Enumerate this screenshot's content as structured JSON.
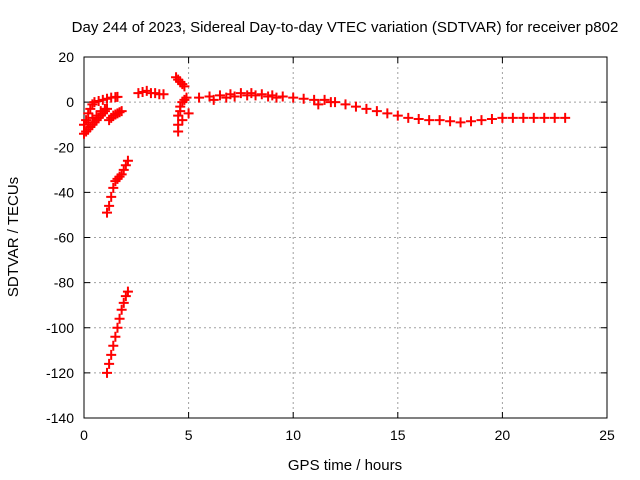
{
  "chart_data": {
    "type": "scatter",
    "title": "Day 244 of 2023, Sidereal Day-to-day VTEC variation (SDTVAR) for receiver p802",
    "xlabel": "GPS time / hours",
    "ylabel": "SDTVAR / TECUs",
    "xlim": [
      0,
      25
    ],
    "ylim": [
      -140,
      20
    ],
    "xticks": [
      0,
      5,
      10,
      15,
      20,
      25
    ],
    "yticks": [
      -140,
      -120,
      -100,
      -80,
      -60,
      -40,
      -20,
      0,
      20
    ],
    "grid": true,
    "legend": "none",
    "marker": "plus",
    "colors": {
      "series": "#ff0000",
      "grid": "#a0a0a0",
      "axis": "#000000"
    },
    "series": [
      {
        "name": "SDTVAR",
        "points": [
          [
            0.0,
            -10
          ],
          [
            0.1,
            -8
          ],
          [
            0.2,
            -5
          ],
          [
            0.3,
            -3
          ],
          [
            0.4,
            -1
          ],
          [
            0.5,
            0
          ],
          [
            0.7,
            0.5
          ],
          [
            0.9,
            1
          ],
          [
            1.1,
            1.5
          ],
          [
            1.3,
            2
          ],
          [
            1.5,
            2.2
          ],
          [
            1.6,
            2.3
          ],
          [
            0.0,
            -14
          ],
          [
            0.1,
            -13
          ],
          [
            0.2,
            -12
          ],
          [
            0.3,
            -11
          ],
          [
            0.4,
            -10
          ],
          [
            0.5,
            -9
          ],
          [
            0.6,
            -8
          ],
          [
            0.7,
            -7
          ],
          [
            0.8,
            -6
          ],
          [
            0.9,
            -5
          ],
          [
            1.0,
            -4
          ],
          [
            1.1,
            -3
          ],
          [
            0.2,
            -9
          ],
          [
            0.4,
            -7
          ],
          [
            0.6,
            -6
          ],
          [
            0.8,
            -4
          ],
          [
            1.0,
            -3
          ],
          [
            1.2,
            -8
          ],
          [
            1.3,
            -7
          ],
          [
            1.4,
            -6
          ],
          [
            1.5,
            -5.5
          ],
          [
            1.6,
            -5
          ],
          [
            1.7,
            -4.5
          ],
          [
            1.8,
            -4
          ],
          [
            1.1,
            -49
          ],
          [
            1.2,
            -46
          ],
          [
            1.3,
            -42
          ],
          [
            1.4,
            -38
          ],
          [
            1.5,
            -35
          ],
          [
            1.6,
            -34
          ],
          [
            1.7,
            -33
          ],
          [
            1.8,
            -32
          ],
          [
            1.9,
            -30
          ],
          [
            2.0,
            -28
          ],
          [
            2.1,
            -26
          ],
          [
            1.1,
            -120
          ],
          [
            1.2,
            -116
          ],
          [
            1.3,
            -112
          ],
          [
            1.4,
            -108
          ],
          [
            1.5,
            -104
          ],
          [
            1.6,
            -100
          ],
          [
            1.7,
            -96
          ],
          [
            1.8,
            -92
          ],
          [
            1.9,
            -89
          ],
          [
            2.0,
            -86
          ],
          [
            2.1,
            -84
          ],
          [
            2.6,
            4
          ],
          [
            2.8,
            4.5
          ],
          [
            3.0,
            5
          ],
          [
            3.2,
            4
          ],
          [
            3.4,
            4
          ],
          [
            3.6,
            3.5
          ],
          [
            3.8,
            3.5
          ],
          [
            4.5,
            -13
          ],
          [
            4.5,
            -10
          ],
          [
            4.5,
            -6
          ],
          [
            4.6,
            -4
          ],
          [
            4.6,
            -2
          ],
          [
            4.7,
            0
          ],
          [
            4.8,
            1
          ],
          [
            4.9,
            2
          ],
          [
            5.0,
            -5
          ],
          [
            4.7,
            -8
          ],
          [
            4.4,
            11
          ],
          [
            4.5,
            10
          ],
          [
            4.6,
            9
          ],
          [
            4.7,
            8
          ],
          [
            4.8,
            7
          ],
          [
            5.5,
            2
          ],
          [
            6.0,
            2.5
          ],
          [
            6.5,
            3
          ],
          [
            7.0,
            3.5
          ],
          [
            7.5,
            4
          ],
          [
            8.0,
            4
          ],
          [
            8.5,
            3.5
          ],
          [
            9.0,
            3
          ],
          [
            9.5,
            2.5
          ],
          [
            10.0,
            2
          ],
          [
            6.2,
            1
          ],
          [
            6.8,
            2
          ],
          [
            7.2,
            2.5
          ],
          [
            7.8,
            3
          ],
          [
            8.2,
            3
          ],
          [
            8.8,
            2.5
          ],
          [
            9.2,
            2
          ],
          [
            10.5,
            1.5
          ],
          [
            11.0,
            1
          ],
          [
            11.5,
            1
          ],
          [
            12.0,
            0
          ],
          [
            12.5,
            -1
          ],
          [
            13.0,
            -2
          ],
          [
            13.5,
            -3
          ],
          [
            14.0,
            -4
          ],
          [
            14.5,
            -5
          ],
          [
            15.0,
            -6
          ],
          [
            11.2,
            -1
          ],
          [
            11.8,
            0
          ],
          [
            15.5,
            -7
          ],
          [
            16.0,
            -7.5
          ],
          [
            16.5,
            -8
          ],
          [
            17.0,
            -8
          ],
          [
            17.5,
            -8.5
          ],
          [
            18.0,
            -9
          ],
          [
            18.5,
            -8.5
          ],
          [
            19.0,
            -8
          ],
          [
            19.5,
            -7.5
          ],
          [
            20.0,
            -7
          ],
          [
            20.5,
            -7
          ],
          [
            21.0,
            -7
          ],
          [
            21.5,
            -7
          ],
          [
            22.0,
            -7
          ],
          [
            22.5,
            -7
          ],
          [
            23.0,
            -7
          ]
        ]
      }
    ]
  }
}
